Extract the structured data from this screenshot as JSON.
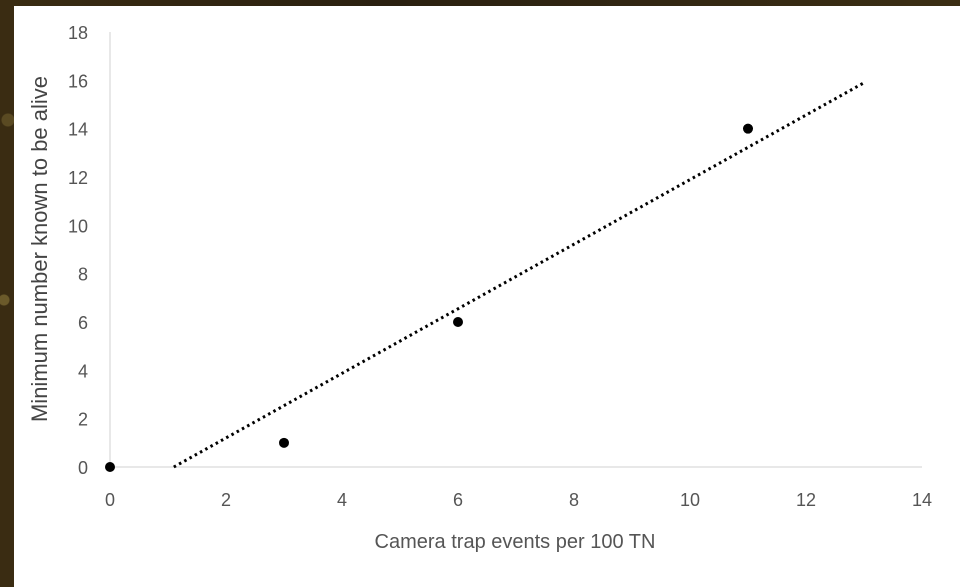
{
  "chart_data": {
    "type": "scatter",
    "xlabel": "Camera trap events per 100 TN",
    "ylabel": "Minimum number known to be alive",
    "xlim": [
      0,
      14
    ],
    "ylim": [
      0,
      18
    ],
    "xticks": [
      0,
      2,
      4,
      6,
      8,
      10,
      12,
      14
    ],
    "yticks": [
      0,
      2,
      4,
      6,
      8,
      10,
      12,
      14,
      16,
      18
    ],
    "grid": false,
    "series": [
      {
        "points": [
          {
            "x": 0,
            "y": 0
          },
          {
            "x": 3,
            "y": 1
          },
          {
            "x": 6,
            "y": 6
          },
          {
            "x": 11,
            "y": 14
          }
        ],
        "color": "#000000"
      }
    ],
    "trendline": {
      "style": "dotted",
      "x_start": 1.1,
      "y_start": 0,
      "x_end": 13,
      "y_end": 15.9,
      "color": "#000000"
    }
  }
}
